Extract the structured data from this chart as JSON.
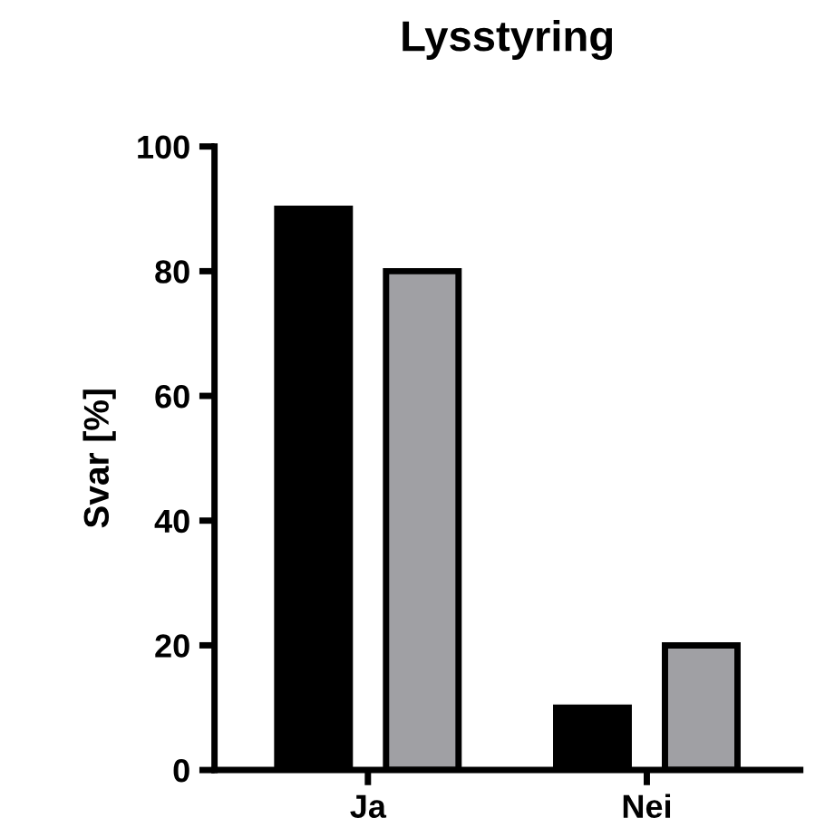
{
  "chart_data": {
    "type": "bar",
    "title": "Lysstyring",
    "ylabel": "Svar [%]",
    "categories": [
      "Ja",
      "Nei"
    ],
    "series": [
      {
        "color": "#000000",
        "values": [
          90,
          10
        ]
      },
      {
        "color": "#a0a0a4",
        "values": [
          80,
          20
        ]
      }
    ],
    "ylim": [
      0,
      100
    ],
    "yticks": [
      0,
      20,
      40,
      60,
      80,
      100
    ],
    "grid": false
  }
}
